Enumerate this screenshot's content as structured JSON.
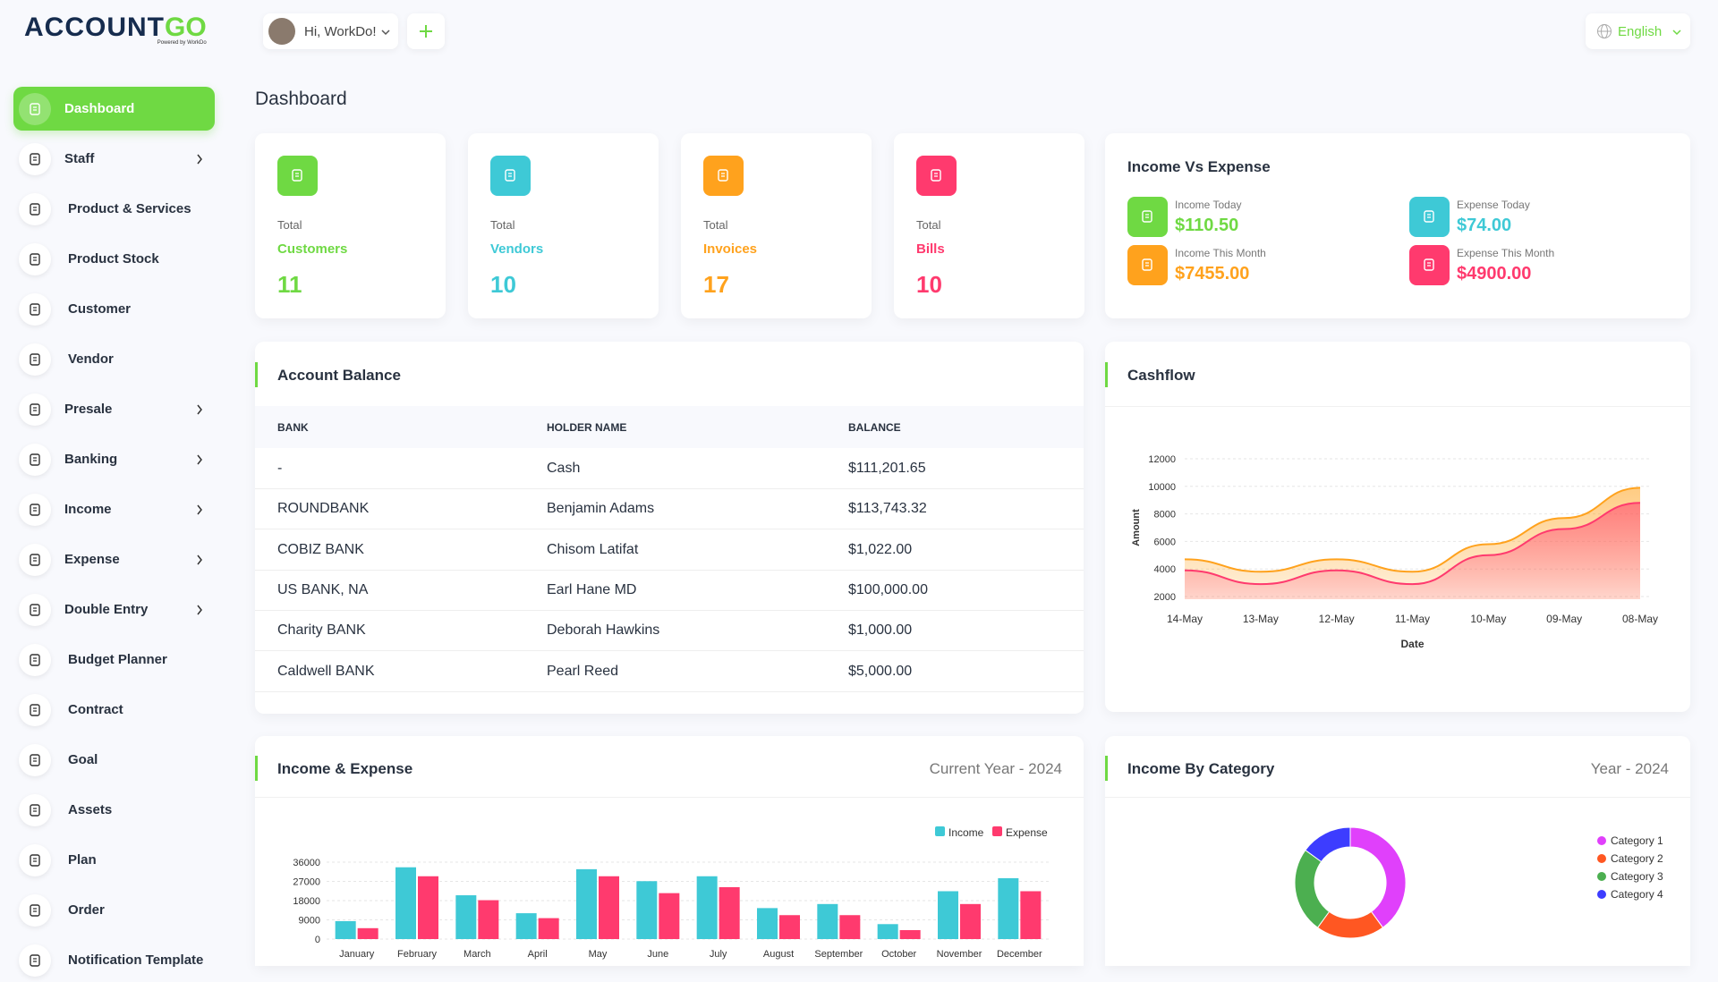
{
  "brand": {
    "name_main": "ACCOUNT",
    "name_accent": "GO",
    "powered": "Powered by WorkDo"
  },
  "header": {
    "greeting": "Hi, WorkDo!",
    "language": "English"
  },
  "sidebar": [
    {
      "label": "Dashboard",
      "submenu": false,
      "active": true
    },
    {
      "label": "Staff",
      "submenu": true
    },
    {
      "label": "Product & Services",
      "submenu": false
    },
    {
      "label": "Product Stock",
      "submenu": false
    },
    {
      "label": "Customer",
      "submenu": false
    },
    {
      "label": "Vendor",
      "submenu": false
    },
    {
      "label": "Presale",
      "submenu": true
    },
    {
      "label": "Banking",
      "submenu": true
    },
    {
      "label": "Income",
      "submenu": true
    },
    {
      "label": "Expense",
      "submenu": true
    },
    {
      "label": "Double Entry",
      "submenu": true
    },
    {
      "label": "Budget Planner",
      "submenu": false
    },
    {
      "label": "Contract",
      "submenu": false
    },
    {
      "label": "Goal",
      "submenu": false
    },
    {
      "label": "Assets",
      "submenu": false
    },
    {
      "label": "Plan",
      "submenu": false
    },
    {
      "label": "Order",
      "submenu": false
    },
    {
      "label": "Notification Template",
      "submenu": false
    }
  ],
  "page_title": "Dashboard",
  "stats": [
    {
      "caption": "Total",
      "label": "Customers",
      "value": 11,
      "color": "#6fd943"
    },
    {
      "caption": "Total",
      "label": "Vendors",
      "value": 10,
      "color": "#3ec9d6"
    },
    {
      "caption": "Total",
      "label": "Invoices",
      "value": 17,
      "color": "#ffa21d"
    },
    {
      "caption": "Total",
      "label": "Bills",
      "value": 10,
      "color": "#ff3a6e"
    }
  ],
  "income_vs_expense": {
    "title": "Income Vs Expense",
    "items": [
      {
        "label": "Income Today",
        "value": "$110.50",
        "color": "#6fd943"
      },
      {
        "label": "Expense Today",
        "value": "$74.00",
        "color": "#3ec9d6"
      },
      {
        "label": "Income This Month",
        "value": "$7455.00",
        "color": "#ffa21d"
      },
      {
        "label": "Expense This Month",
        "value": "$4900.00",
        "color": "#ff3a6e"
      }
    ]
  },
  "account_balance": {
    "title": "Account Balance",
    "columns": [
      "BANK",
      "HOLDER NAME",
      "BALANCE"
    ],
    "rows": [
      [
        "-",
        "Cash",
        "$111,201.65"
      ],
      [
        "ROUNDBANK",
        "Benjamin Adams",
        "$113,743.32"
      ],
      [
        "COBIZ BANK",
        "Chisom Latifat",
        "$1,022.00"
      ],
      [
        "US BANK, NA",
        "Earl Hane MD",
        "$100,000.00"
      ],
      [
        "Charity BANK",
        "Deborah Hawkins",
        "$1,000.00"
      ],
      [
        "Caldwell BANK",
        "Pearl Reed",
        "$5,000.00"
      ]
    ]
  },
  "chart_data": [
    {
      "type": "area",
      "title": "Cashflow",
      "x_label": "Date",
      "y_label": "Amount",
      "categories": [
        "14-May",
        "13-May",
        "12-May",
        "11-May",
        "10-May",
        "09-May",
        "08-May"
      ],
      "series": [
        {
          "color": "#ffa21d",
          "values": [
            4700,
            3800,
            4700,
            3800,
            5800,
            7700,
            9900
          ]
        },
        {
          "color": "#ff3a6e",
          "values": [
            3900,
            2900,
            3900,
            2900,
            5000,
            6900,
            8800
          ]
        }
      ],
      "ylim": [
        2000,
        12000
      ],
      "yticks": [
        2000,
        4000,
        6000,
        8000,
        10000,
        12000
      ],
      "grid": true
    },
    {
      "type": "bar",
      "title": "Income & Expense",
      "subtitle": "Current Year - 2024",
      "categories": [
        "January",
        "February",
        "March",
        "April",
        "May",
        "June",
        "July",
        "August",
        "September",
        "October",
        "November",
        "December"
      ],
      "series": [
        {
          "name": "Income",
          "color": "#3ec9d6",
          "values": [
            8400,
            33600,
            20500,
            12100,
            32700,
            27100,
            29400,
            14500,
            16400,
            7000,
            22400,
            28500
          ]
        },
        {
          "name": "Expense",
          "color": "#ff3a6e",
          "values": [
            5100,
            29400,
            18200,
            9800,
            29400,
            21500,
            24300,
            11200,
            11200,
            4200,
            16400,
            22400
          ]
        }
      ],
      "ylim": [
        0,
        36000
      ],
      "yticks": [
        0,
        9000,
        18000,
        27000,
        36000
      ],
      "grid": true
    },
    {
      "type": "pie",
      "title": "Income By Category",
      "subtitle": "Year - 2024",
      "categories": [
        "Category 1",
        "Category 2",
        "Category 3",
        "Category 4"
      ],
      "values": [
        40,
        20,
        25,
        15
      ],
      "colors": [
        "#e040fb",
        "#ff5722",
        "#4caf50",
        "#3d3dff"
      ],
      "donut": true
    }
  ]
}
